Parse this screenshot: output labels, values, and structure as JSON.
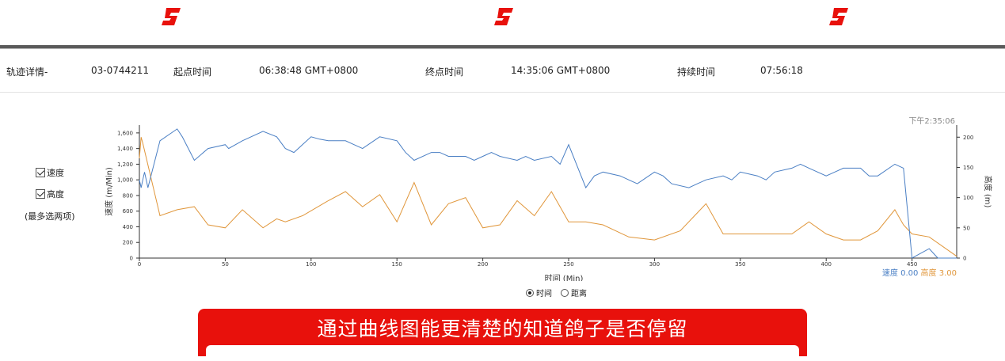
{
  "info": {
    "track_label": "轨迹详情-",
    "track_id": "03-0744211",
    "start_label": "起点时间",
    "start_value": "06:38:48 GMT+0800",
    "end_label": "终点时间",
    "end_value": "14:35:06 GMT+0800",
    "duration_label": "持续时间",
    "duration_value": "07:56:18"
  },
  "controls": {
    "speed_checkbox": "速度",
    "altitude_checkbox": "高度",
    "max_note": "(最多选两项)",
    "radio_time": "时间",
    "radio_distance": "距离"
  },
  "banner": {
    "text": "通过曲线图能更清楚的知道鸽子是否停留"
  },
  "colors": {
    "speed": "#4a7fc4",
    "altitude": "#e0963a",
    "brand_red": "#e8110c"
  },
  "chart_data": {
    "type": "line",
    "xlabel": "时间 (Min)",
    "ylabel": "速度 (m/Min)",
    "y2label": "高度 (m)",
    "xlim": [
      0,
      476
    ],
    "ylim": [
      0,
      1700
    ],
    "y2lim": [
      0,
      220
    ],
    "x_ticks": [
      0,
      50,
      100,
      150,
      200,
      250,
      300,
      350,
      400,
      450
    ],
    "y_ticks": [
      0,
      200,
      400,
      600,
      800,
      1000,
      1200,
      1400,
      1600
    ],
    "y2_ticks": [
      0,
      50,
      100,
      150,
      200
    ],
    "y_tick_labels": [
      "0",
      "200",
      "400",
      "600",
      "800",
      "1,000",
      "1,200",
      "1,400",
      "1,600"
    ],
    "hover_time": "下午2:35:06",
    "legend": {
      "speed_label": "速度",
      "speed_value": "0.00",
      "altitude_label": "高度",
      "altitude_value": "3.00"
    },
    "series": [
      {
        "name": "速度",
        "axis": "left",
        "x": [
          0,
          1,
          2,
          3,
          5,
          12,
          22,
          25,
          32,
          40,
          50,
          52,
          60,
          72,
          80,
          85,
          90,
          100,
          105,
          110,
          120,
          125,
          130,
          140,
          150,
          155,
          160,
          170,
          175,
          180,
          190,
          195,
          200,
          205,
          210,
          220,
          225,
          230,
          240,
          245,
          250,
          260,
          265,
          270,
          280,
          285,
          290,
          300,
          305,
          310,
          320,
          325,
          330,
          340,
          345,
          350,
          360,
          365,
          370,
          380,
          385,
          390,
          400,
          405,
          410,
          420,
          425,
          430,
          440,
          445,
          450,
          460,
          465,
          476
        ],
        "y": [
          1000,
          900,
          1000,
          1100,
          900,
          1500,
          1650,
          1550,
          1250,
          1400,
          1450,
          1400,
          1500,
          1620,
          1550,
          1400,
          1350,
          1550,
          1520,
          1500,
          1500,
          1450,
          1400,
          1550,
          1500,
          1350,
          1250,
          1350,
          1350,
          1300,
          1300,
          1250,
          1300,
          1350,
          1300,
          1250,
          1300,
          1250,
          1300,
          1200,
          1450,
          900,
          1050,
          1100,
          1050,
          1000,
          950,
          1100,
          1050,
          950,
          900,
          950,
          1000,
          1050,
          1000,
          1100,
          1050,
          1000,
          1100,
          1150,
          1200,
          1150,
          1050,
          1100,
          1150,
          1150,
          1050,
          1050,
          1200,
          1150,
          0,
          120,
          0,
          0
        ]
      },
      {
        "name": "高度",
        "axis": "right",
        "x": [
          0,
          1,
          2,
          12,
          22,
          32,
          40,
          50,
          60,
          72,
          80,
          85,
          95,
          110,
          120,
          130,
          140,
          150,
          160,
          170,
          180,
          190,
          200,
          210,
          220,
          230,
          240,
          250,
          260,
          270,
          285,
          300,
          315,
          330,
          340,
          350,
          360,
          370,
          380,
          390,
          400,
          410,
          420,
          430,
          440,
          445,
          450,
          460,
          476
        ],
        "y": [
          165,
          200,
          190,
          70,
          80,
          85,
          55,
          50,
          80,
          50,
          65,
          60,
          70,
          95,
          110,
          85,
          105,
          60,
          125,
          55,
          90,
          100,
          50,
          55,
          95,
          70,
          110,
          60,
          60,
          55,
          35,
          30,
          45,
          90,
          40,
          40,
          40,
          40,
          40,
          60,
          40,
          30,
          30,
          45,
          80,
          55,
          40,
          35,
          3
        ]
      }
    ]
  }
}
